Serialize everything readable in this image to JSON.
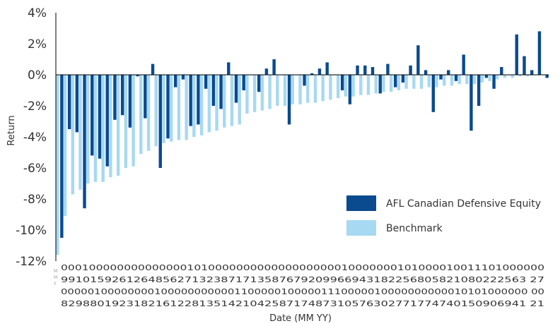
{
  "chart_data": {
    "type": "bar",
    "ylabel": "Return",
    "xlabel": "Date (MM YY)",
    "ylim": [
      -12,
      4
    ],
    "y_ticks": [
      4,
      2,
      0,
      -2,
      -4,
      -6,
      -8,
      -10,
      -12
    ],
    "y_tick_labels": [
      "4%",
      "2%",
      "0%",
      "-2%",
      "-4%",
      "-6%",
      "-8%",
      "-10%",
      "-12%"
    ],
    "grid": false,
    "legend_position": "bottom-right",
    "colors": {
      "fund": "#0a4a8f",
      "benchmark": "#a7d9f2",
      "axis": "#000000"
    },
    "x_tick_rows": [
      "000100000000000000101000000000000000000010000000101000010011101000000",
      "991015926126485627132387171358767920996694318225680582108022256327",
      "000001000000001000000000001100000100000111000001000000000001010100000000",
      "82988019231821612281351421042587174873105763027717747401509069412 1"
    ],
    "x_tick_rows_display": [
      "000100000000000000101000000000000000000010000000101000010011101000000",
      "9910159261264856271323871713587679209966943182256805821080222563 27",
      "0000010000000010000000000011000001000001110000010000000000010101000000 00",
      "8298801923182161228135142104258717487310576302771774740150906941 21"
    ],
    "x_tick_small": "M M Y",
    "series": [
      {
        "name": "AFL Canadian Defensive Equity",
        "values": [
          -10.5,
          -3.5,
          -3.7,
          -8.6,
          -5.2,
          -5.4,
          -5.9,
          -2.9,
          -2.6,
          -3.4,
          -0.1,
          -2.8,
          0.7,
          -6.0,
          -4.1,
          -0.8,
          -0.3,
          -3.3,
          -3.2,
          -0.9,
          -2.0,
          -2.2,
          0.8,
          -1.8,
          -1.0,
          0.0,
          -1.1,
          0.4,
          1.0,
          0.0,
          -3.2,
          0.0,
          -0.7,
          0.1,
          0.4,
          0.8,
          0.0,
          -1.0,
          -1.9,
          0.6,
          0.6,
          0.5,
          -1.2,
          0.7,
          -0.8,
          -0.5,
          0.6,
          1.9,
          0.3,
          -2.4,
          -0.3,
          0.3,
          -0.4,
          1.3,
          -3.6,
          -2.0,
          -0.2,
          -0.9,
          0.5,
          0.0,
          2.6,
          1.2,
          0.3,
          2.8,
          -0.2
        ]
      },
      {
        "name": "Benchmark",
        "values": [
          -11.6,
          -9.1,
          -7.7,
          -7.4,
          -7.0,
          -6.9,
          -6.9,
          -6.6,
          -6.5,
          -6.0,
          -5.9,
          -5.1,
          -4.9,
          -4.6,
          -4.4,
          -4.3,
          -4.2,
          -4.2,
          -4.0,
          -3.9,
          -3.7,
          -3.6,
          -3.4,
          -3.3,
          -3.2,
          -2.5,
          -2.4,
          -2.3,
          -2.2,
          -2.0,
          -2.0,
          -1.9,
          -1.9,
          -1.8,
          -1.8,
          -1.7,
          -1.6,
          -1.5,
          -1.4,
          -1.4,
          -1.3,
          -1.3,
          -1.2,
          -1.1,
          -1.1,
          -1.0,
          -0.9,
          -0.9,
          -0.9,
          -0.8,
          -0.8,
          -0.7,
          -0.7,
          -0.6,
          -0.6,
          -0.6,
          -0.5,
          -0.4,
          -0.3,
          -0.2,
          -0.2,
          -0.1,
          -0.1,
          0.0,
          0.0
        ]
      }
    ]
  }
}
